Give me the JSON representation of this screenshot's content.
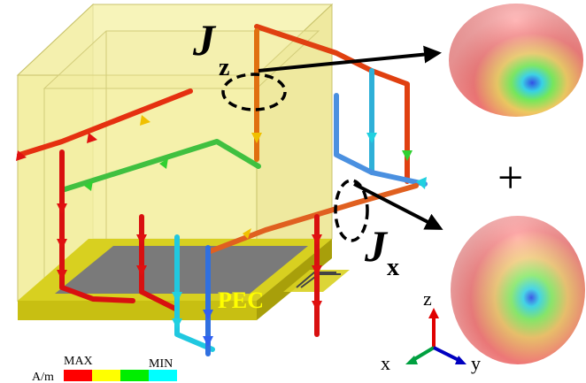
{
  "labels": {
    "jz_main": "J",
    "jz_sub": "z",
    "jx_main": "J",
    "jx_sub": "x",
    "pec": "PEC",
    "plus": "+"
  },
  "axes": {
    "z": "z",
    "x": "x",
    "y": "y"
  },
  "legend": {
    "unit": "A/m",
    "max": "MAX",
    "min": "MIN",
    "colors": [
      "#ff0000",
      "#ffff00",
      "#00ee00",
      "#00ffff"
    ]
  },
  "colors": {
    "box_fill": "#f3efa0",
    "substrate": "#d4cc1a",
    "ground": "#7d7d7d",
    "pec_text": "#ffff00",
    "axis_z": "#e00000",
    "axis_x": "#00a040",
    "axis_y": "#0000c0"
  }
}
